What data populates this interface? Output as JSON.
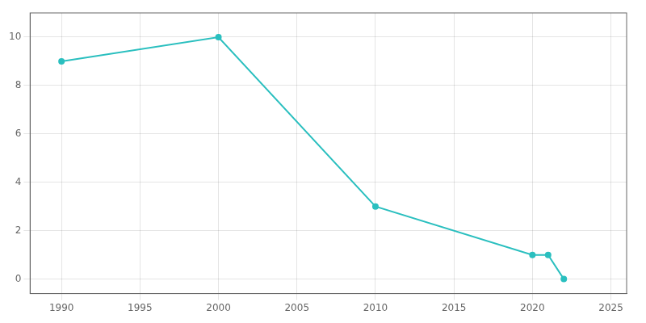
{
  "chart_data": {
    "type": "line",
    "x": [
      1990,
      2000,
      2010,
      2020,
      2021,
      2022
    ],
    "values": [
      9,
      10,
      3,
      1,
      1,
      0
    ],
    "color": "#2abfbf",
    "marker": "circle",
    "xlim": [
      1988,
      2026
    ],
    "ylim": [
      -0.6,
      11.0
    ],
    "xticks": [
      1990,
      1995,
      2000,
      2005,
      2010,
      2015,
      2020,
      2025
    ],
    "yticks": [
      0,
      2,
      4,
      6,
      8,
      10
    ],
    "grid": true
  }
}
